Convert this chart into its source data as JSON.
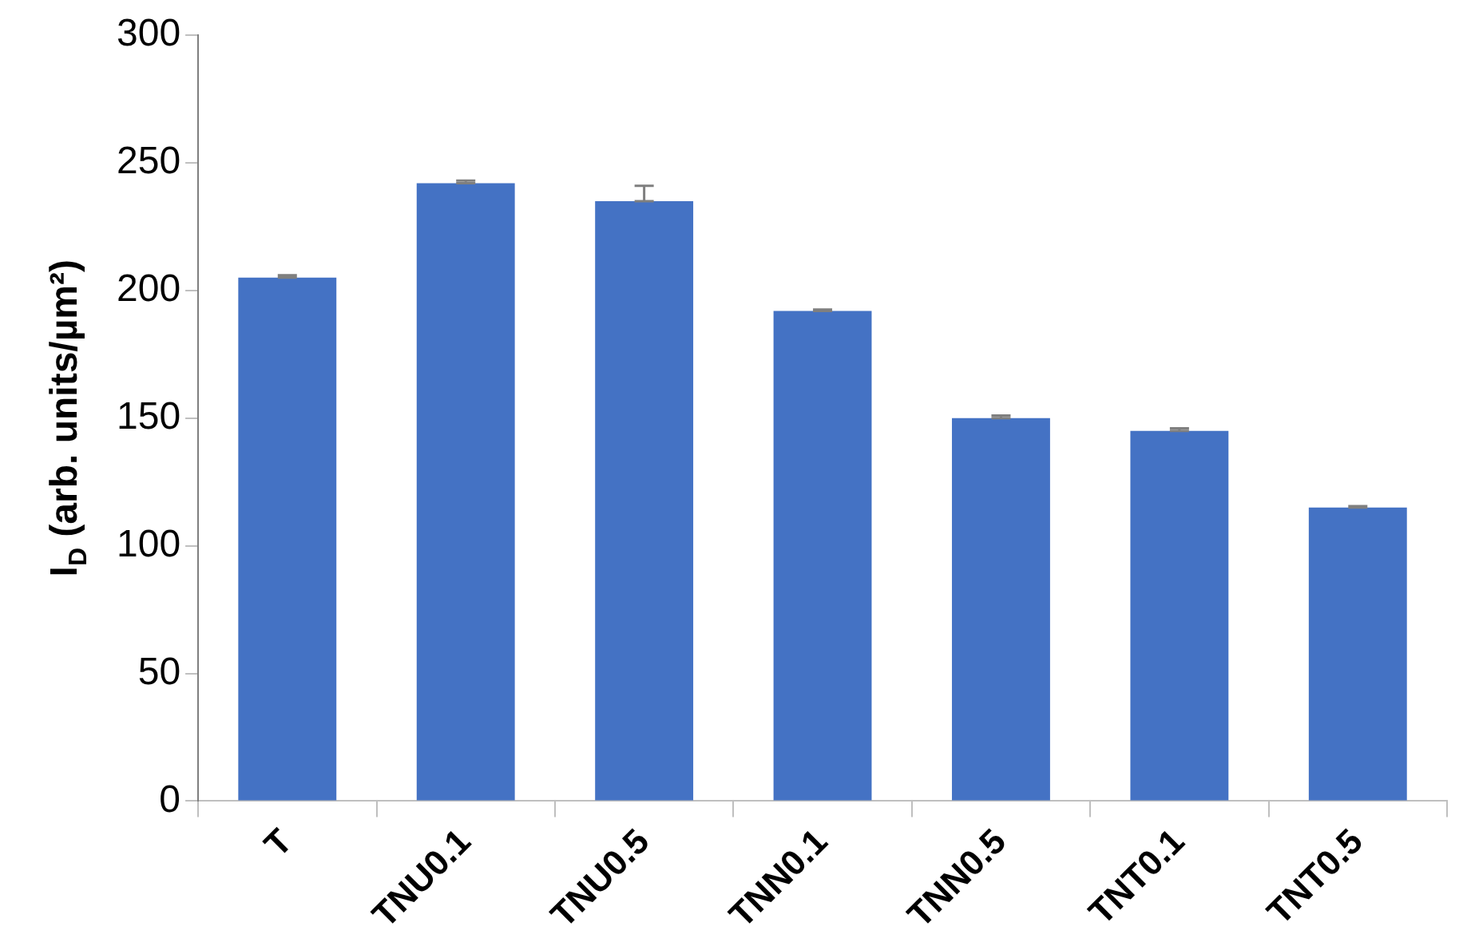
{
  "chart_data": {
    "type": "bar",
    "ylabel": "I$_{D}$ (arb. units/µm²)",
    "categories": [
      "T",
      "TNU0.1",
      "TNU0.5",
      "TNN0.1",
      "TNN0.5",
      "TNT0.1",
      "TNT0.5"
    ],
    "values": [
      205,
      242,
      235,
      192,
      150,
      145,
      115
    ],
    "errors": [
      [
        205,
        206
      ],
      [
        242,
        243
      ],
      [
        235,
        241
      ],
      [
        192,
        192.5
      ],
      [
        150,
        151
      ],
      [
        145,
        146
      ],
      [
        115,
        115.5
      ]
    ],
    "color": "#4472c4",
    "ylim": [
      0,
      300
    ],
    "yticks": [
      0,
      50,
      100,
      150,
      200,
      250,
      300
    ],
    "grid": false,
    "legend": false
  }
}
